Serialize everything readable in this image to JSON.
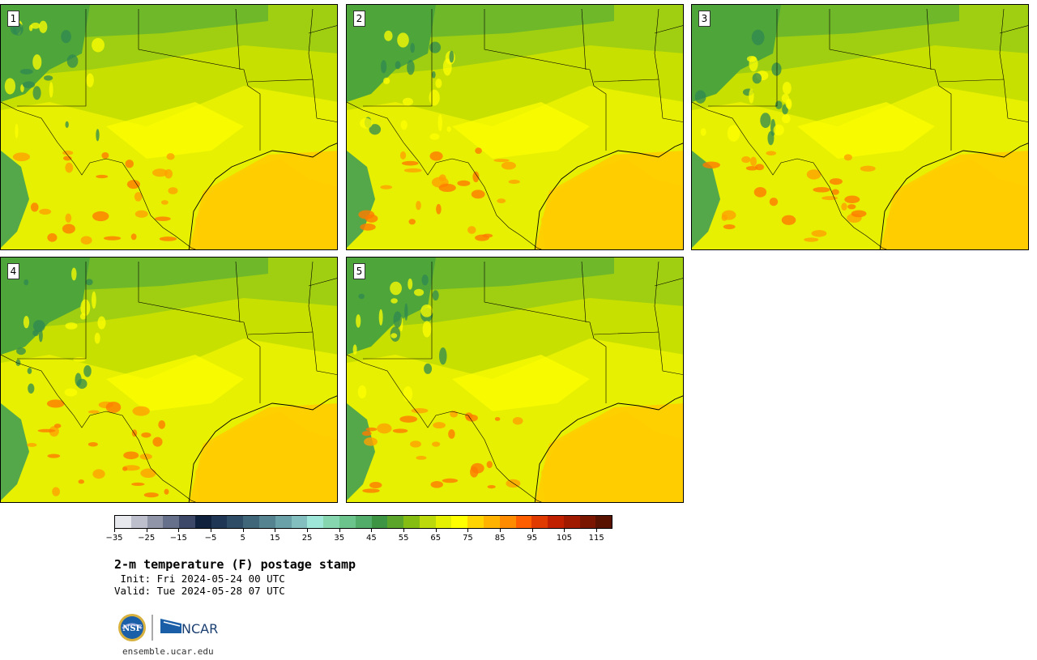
{
  "panels": [
    {
      "label": "1",
      "variant": 0
    },
    {
      "label": "2",
      "variant": 1
    },
    {
      "label": "3",
      "variant": 2
    },
    {
      "label": "4",
      "variant": 3
    },
    {
      "label": "5",
      "variant": 4
    }
  ],
  "colorbar": {
    "colors": [
      "#e6e8ee",
      "#bdbfcc",
      "#9096a8",
      "#67708a",
      "#3d4768",
      "#10213e",
      "#1f3654",
      "#2e4c66",
      "#3f6679",
      "#55838f",
      "#6aa0a7",
      "#83bfbe",
      "#9ee6d8",
      "#86d6b0",
      "#6cc48d",
      "#52ad6a",
      "#3d9442",
      "#5ba52a",
      "#86bd12",
      "#bcd90b",
      "#e5f000",
      "#ffff00",
      "#ffd400",
      "#ffb200",
      "#ff8c00",
      "#ff5e00",
      "#e03a00",
      "#c02000",
      "#a01a00",
      "#7a1500",
      "#5a1200"
    ],
    "tick_labels": [
      "−35",
      "−25",
      "−15",
      "−5",
      "5",
      "15",
      "25",
      "35",
      "45",
      "55",
      "65",
      "75",
      "85",
      "95",
      "105",
      "115"
    ]
  },
  "title": "2-m temperature (F) postage stamp",
  "init_line": " Init: Fri 2024-05-24 00 UTC",
  "valid_line": "Valid: Tue 2024-05-28 07 UTC",
  "logos": {
    "nsf": "NSF",
    "ncar": "NCAR"
  },
  "url": "ensemble.ucar.edu"
}
